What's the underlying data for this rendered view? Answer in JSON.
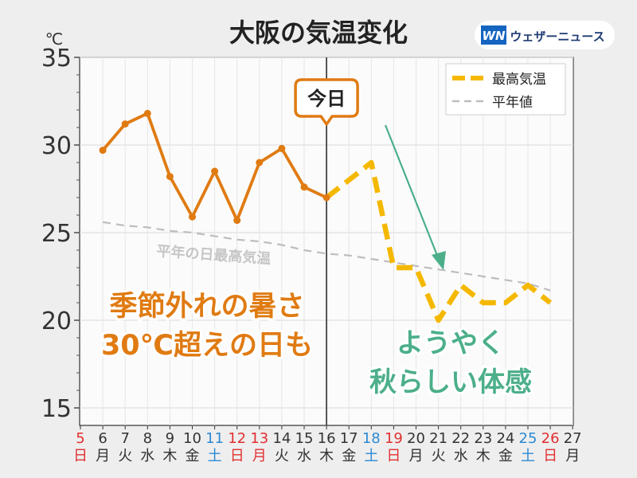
{
  "header": {
    "title": "大阪の気温変化",
    "brand_mark": "WN",
    "brand_name": "ウェザーニュース"
  },
  "chart_data": {
    "type": "line",
    "unit": "℃",
    "ylim": [
      14,
      35
    ],
    "yticks": [
      15,
      20,
      25,
      30,
      35
    ],
    "grid": true,
    "legend_position": "top-right",
    "x": [
      {
        "day": "5",
        "weekday": "日",
        "kind": "holiday"
      },
      {
        "day": "6",
        "weekday": "月",
        "kind": "weekday"
      },
      {
        "day": "7",
        "weekday": "火",
        "kind": "weekday"
      },
      {
        "day": "8",
        "weekday": "水",
        "kind": "weekday"
      },
      {
        "day": "9",
        "weekday": "木",
        "kind": "weekday"
      },
      {
        "day": "10",
        "weekday": "金",
        "kind": "weekday"
      },
      {
        "day": "11",
        "weekday": "土",
        "kind": "saturday"
      },
      {
        "day": "12",
        "weekday": "日",
        "kind": "holiday"
      },
      {
        "day": "13",
        "weekday": "月",
        "kind": "holiday"
      },
      {
        "day": "14",
        "weekday": "火",
        "kind": "weekday"
      },
      {
        "day": "15",
        "weekday": "水",
        "kind": "weekday"
      },
      {
        "day": "16",
        "weekday": "木",
        "kind": "weekday"
      },
      {
        "day": "17",
        "weekday": "金",
        "kind": "weekday"
      },
      {
        "day": "18",
        "weekday": "土",
        "kind": "saturday"
      },
      {
        "day": "19",
        "weekday": "日",
        "kind": "holiday"
      },
      {
        "day": "20",
        "weekday": "月",
        "kind": "weekday"
      },
      {
        "day": "21",
        "weekday": "火",
        "kind": "weekday"
      },
      {
        "day": "22",
        "weekday": "水",
        "kind": "weekday"
      },
      {
        "day": "23",
        "weekday": "木",
        "kind": "weekday"
      },
      {
        "day": "24",
        "weekday": "金",
        "kind": "weekday"
      },
      {
        "day": "25",
        "weekday": "土",
        "kind": "saturday"
      },
      {
        "day": "26",
        "weekday": "日",
        "kind": "holiday"
      },
      {
        "day": "27",
        "weekday": "月",
        "kind": "weekday"
      }
    ],
    "series": [
      {
        "name": "最高気温",
        "role": "observed",
        "color": "#e07b12",
        "points": [
          [
            "6",
            29.7
          ],
          [
            "7",
            31.2
          ],
          [
            "8",
            31.8
          ],
          [
            "9",
            28.2
          ],
          [
            "10",
            25.9
          ],
          [
            "11",
            28.5
          ],
          [
            "12",
            25.7
          ],
          [
            "13",
            29.0
          ],
          [
            "14",
            29.8
          ],
          [
            "15",
            27.6
          ],
          [
            "16",
            27.0
          ]
        ]
      },
      {
        "name": "最高気温",
        "role": "forecast",
        "color": "#f5b800",
        "points": [
          [
            "16",
            27.0
          ],
          [
            "17",
            28.0
          ],
          [
            "18",
            29.0
          ],
          [
            "19",
            23.0
          ],
          [
            "20",
            23.0
          ],
          [
            "21",
            20.0
          ],
          [
            "22",
            22.0
          ],
          [
            "23",
            21.0
          ],
          [
            "24",
            21.0
          ],
          [
            "25",
            22.0
          ],
          [
            "26",
            21.0
          ]
        ]
      },
      {
        "name": "平年値",
        "role": "normal",
        "color": "#bdbdbd",
        "points": [
          [
            "6",
            25.6
          ],
          [
            "7",
            25.4
          ],
          [
            "8",
            25.3
          ],
          [
            "9",
            25.1
          ],
          [
            "10",
            25.0
          ],
          [
            "11",
            24.8
          ],
          [
            "12",
            24.6
          ],
          [
            "13",
            24.5
          ],
          [
            "14",
            24.3
          ],
          [
            "15",
            24.0
          ],
          [
            "16",
            23.8
          ],
          [
            "17",
            23.7
          ],
          [
            "18",
            23.5
          ],
          [
            "19",
            23.3
          ],
          [
            "20",
            23.1
          ],
          [
            "21",
            22.9
          ],
          [
            "22",
            22.7
          ],
          [
            "23",
            22.5
          ],
          [
            "24",
            22.3
          ],
          [
            "25",
            22.1
          ],
          [
            "26",
            21.7
          ]
        ]
      }
    ],
    "today_label": "今日",
    "normal_line_label": "平年の日最高気温",
    "annotation_left": [
      "季節外れの暑さ",
      "30℃超えの日も"
    ],
    "annotation_right": [
      "ようやく",
      "秋らしい体感"
    ],
    "legend": [
      {
        "label": "最高気温",
        "color": "#f5b800",
        "style": "dashed-thick"
      },
      {
        "label": "平年値",
        "color": "#bdbdbd",
        "style": "dashed"
      }
    ],
    "colors": {
      "observed": "#e07b12",
      "forecast": "#f5b800",
      "normal": "#bdbdbd",
      "arrow": "#4caf8a",
      "holiday": "#e03030",
      "saturday": "#2b8ad4",
      "weekday": "#333333"
    }
  }
}
